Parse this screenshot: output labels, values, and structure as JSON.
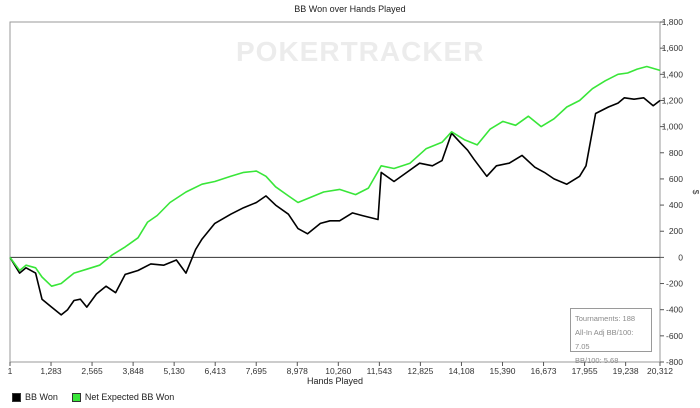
{
  "title": "BB Won over Hands Played",
  "watermark": "POKERTRACKER",
  "legend": [
    {
      "label": "BB Won",
      "color": "#000000"
    },
    {
      "label": "Net Expected BB Won",
      "color": "#39e639"
    }
  ],
  "stats": {
    "tournaments": "Tournaments: 188",
    "allin": "All-In Adj BB/100: 7.05",
    "bb100": "BB/100: 5.68"
  },
  "chart_data": {
    "type": "line",
    "xlabel": "Hands Played",
    "ylabel": "",
    "y_unit": "$",
    "xlim": [
      1,
      20312
    ],
    "ylim": [
      -800,
      1800
    ],
    "x_ticks": [
      "1",
      "1,283",
      "2,565",
      "3,848",
      "5,130",
      "6,413",
      "7,695",
      "8,978",
      "10,260",
      "11,543",
      "12,825",
      "14,108",
      "15,390",
      "16,673",
      "17,955",
      "19,238",
      "20,312"
    ],
    "x_tick_values": [
      1,
      1283,
      2565,
      3848,
      5130,
      6413,
      7695,
      8978,
      10260,
      11543,
      12825,
      14108,
      15390,
      16673,
      17955,
      19238,
      20312
    ],
    "y_ticks": [
      -800,
      -600,
      -400,
      -200,
      0,
      200,
      400,
      600,
      800,
      1000,
      1200,
      1400,
      1600,
      1800
    ],
    "y_tick_labels": [
      "-800",
      "-600",
      "-400",
      "-200",
      "0",
      "200",
      "400",
      "600",
      "800",
      "1,000",
      "1,200",
      "1,400",
      "1,600",
      "1,800"
    ],
    "grid": false,
    "legend_position": "bottom-left",
    "series": [
      {
        "name": "BB Won",
        "color": "#000000",
        "x": [
          1,
          300,
          500,
          800,
          1000,
          1300,
          1600,
          1800,
          2000,
          2200,
          2400,
          2700,
          3000,
          3300,
          3600,
          4000,
          4400,
          4800,
          5200,
          5500,
          5800,
          6000,
          6400,
          6900,
          7300,
          7700,
          8000,
          8300,
          8700,
          9000,
          9300,
          9700,
          10000,
          10300,
          10700,
          11000,
          11500,
          11600,
          12000,
          12400,
          12800,
          13200,
          13500,
          13800,
          14100,
          14300,
          14500,
          14900,
          15200,
          15600,
          16000,
          16400,
          16700,
          17000,
          17400,
          17800,
          18000,
          18300,
          18700,
          19000,
          19200,
          19500,
          19800,
          20100,
          20312
        ],
        "y": [
          0,
          -120,
          -80,
          -120,
          -320,
          -380,
          -440,
          -400,
          -330,
          -320,
          -380,
          -280,
          -220,
          -270,
          -130,
          -100,
          -50,
          -60,
          -20,
          -120,
          60,
          140,
          260,
          330,
          380,
          420,
          470,
          400,
          330,
          220,
          180,
          260,
          280,
          280,
          340,
          320,
          290,
          650,
          580,
          650,
          720,
          700,
          740,
          950,
          870,
          820,
          750,
          620,
          700,
          720,
          780,
          690,
          650,
          600,
          560,
          620,
          700,
          1100,
          1150,
          1180,
          1220,
          1210,
          1220,
          1160,
          1200
        ]
      },
      {
        "name": "Net Expected BB Won",
        "color": "#39e639",
        "x": [
          1,
          300,
          500,
          800,
          1000,
          1300,
          1600,
          1800,
          2000,
          2400,
          2800,
          3200,
          3600,
          4000,
          4300,
          4600,
          5000,
          5500,
          6000,
          6400,
          6900,
          7300,
          7700,
          8000,
          8300,
          8700,
          9000,
          9400,
          9800,
          10300,
          10800,
          11200,
          11600,
          12000,
          12500,
          13000,
          13500,
          13800,
          14200,
          14600,
          15000,
          15400,
          15800,
          16200,
          16600,
          17000,
          17400,
          17800,
          18200,
          18600,
          19000,
          19300,
          19600,
          19900,
          20312
        ],
        "y": [
          0,
          -100,
          -60,
          -80,
          -150,
          -220,
          -200,
          -160,
          -120,
          -90,
          -60,
          20,
          80,
          150,
          270,
          320,
          420,
          500,
          560,
          580,
          620,
          650,
          660,
          620,
          540,
          470,
          420,
          460,
          500,
          520,
          480,
          530,
          700,
          680,
          720,
          830,
          880,
          960,
          900,
          860,
          980,
          1040,
          1010,
          1080,
          1000,
          1060,
          1150,
          1200,
          1290,
          1350,
          1400,
          1410,
          1440,
          1460,
          1430
        ]
      }
    ]
  }
}
